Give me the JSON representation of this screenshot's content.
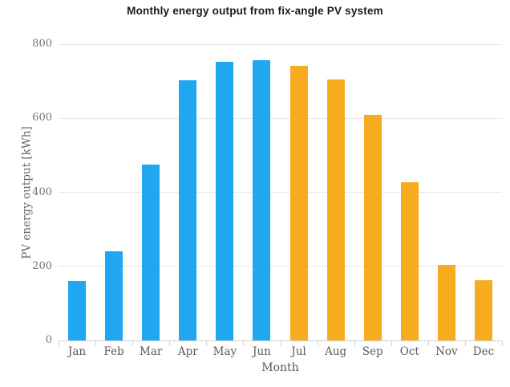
{
  "chart_data": {
    "type": "bar",
    "title": "Monthly energy output from fix-angle PV system",
    "xlabel": "Month",
    "ylabel": "PV energy output [kWh]",
    "categories": [
      "Jan",
      "Feb",
      "Mar",
      "Apr",
      "May",
      "Jun",
      "Jul",
      "Aug",
      "Sep",
      "Oct",
      "Nov",
      "Dec"
    ],
    "values": [
      160,
      240,
      475,
      703,
      752,
      757,
      742,
      705,
      610,
      427,
      204,
      162
    ],
    "bar_colors": [
      "#1fa7f2",
      "#1fa7f2",
      "#1fa7f2",
      "#1fa7f2",
      "#1fa7f2",
      "#1fa7f2",
      "#f7ac20",
      "#f7ac20",
      "#f7ac20",
      "#f7ac20",
      "#f7ac20",
      "#f7ac20"
    ],
    "color_legend": {
      "first_half_color": "#1fa7f2",
      "second_half_color": "#f7ac20"
    },
    "yticks": [
      0,
      200,
      400,
      600,
      800
    ],
    "ylim": [
      0,
      800
    ],
    "grid": "horizontal",
    "legend_position": "none"
  }
}
